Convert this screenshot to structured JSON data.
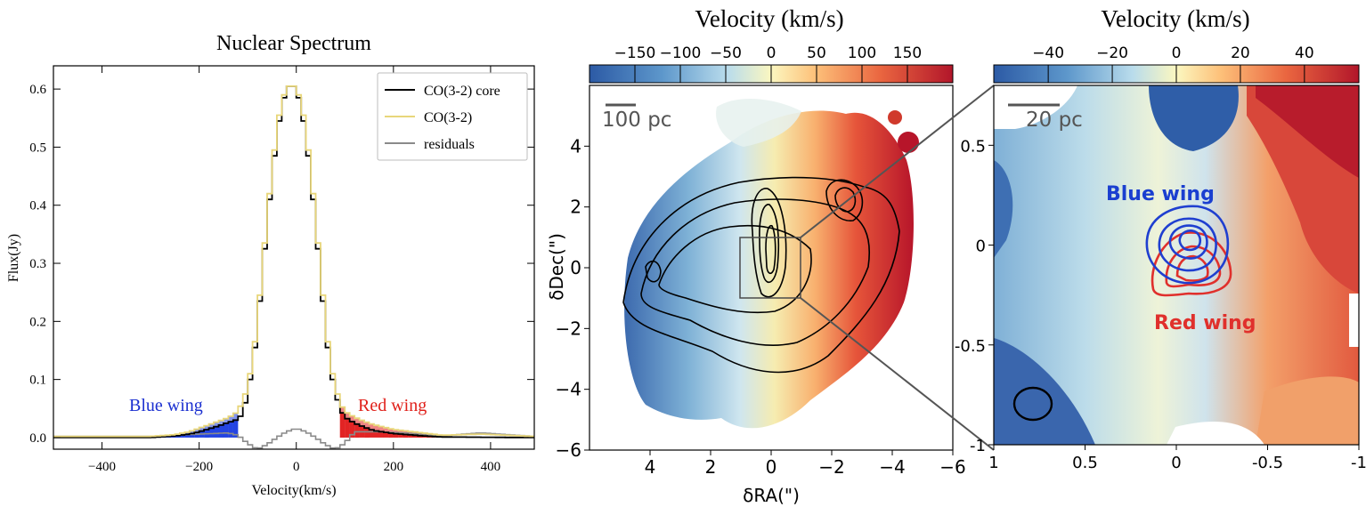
{
  "chart_data": [
    {
      "type": "line",
      "title": "Nuclear Spectrum",
      "xlabel": "Velocity(km/s)",
      "ylabel": "Flux(Jy)",
      "xlim": [
        -500,
        490
      ],
      "ylim": [
        -0.02,
        0.64
      ],
      "xticks": [
        -400,
        -200,
        0,
        200,
        400
      ],
      "yticks": [
        0.0,
        0.1,
        0.2,
        0.3,
        0.4,
        0.5,
        0.6
      ],
      "legend_position": "top-right",
      "legend": [
        "CO(3-2) core",
        "CO(3-2)",
        "residuals"
      ],
      "colors": {
        "core": "#000000",
        "total": "#e8d67a",
        "residuals": "#8a8a8a",
        "blue": "#1f3fe0",
        "red": "#e01f1f"
      },
      "annotations": [
        {
          "text": "Blue wing",
          "x": -205,
          "y": 0.052
        },
        {
          "text": "Red wing",
          "x": 170,
          "y": 0.052
        }
      ],
      "blue_wing_range": [
        -280,
        -120
      ],
      "red_wing_range": [
        90,
        300
      ],
      "series": [
        {
          "name": "CO(3-2) core",
          "x": [
            -500,
            -300,
            -250,
            -220,
            -200,
            -180,
            -160,
            -140,
            -125,
            -110,
            -100,
            -90,
            -80,
            -70,
            -60,
            -50,
            -40,
            -30,
            -20,
            -10,
            0,
            10,
            20,
            30,
            40,
            50,
            60,
            70,
            80,
            90,
            100,
            110,
            120,
            140,
            160,
            200,
            260,
            300,
            490
          ],
          "y": [
            0,
            0,
            0.003,
            0.006,
            0.01,
            0.015,
            0.02,
            0.026,
            0.03,
            0.04,
            0.08,
            0.12,
            0.19,
            0.28,
            0.37,
            0.45,
            0.52,
            0.57,
            0.6,
            0.61,
            0.6,
            0.57,
            0.52,
            0.45,
            0.37,
            0.28,
            0.19,
            0.12,
            0.08,
            0.05,
            0.035,
            0.03,
            0.025,
            0.018,
            0.012,
            0.007,
            0.003,
            0.001,
            0
          ]
        },
        {
          "name": "CO(3-2)",
          "x": [
            -500,
            -300,
            -250,
            -220,
            -200,
            -180,
            -160,
            -140,
            -125,
            -110,
            -100,
            -90,
            -80,
            -70,
            -60,
            -50,
            -40,
            -30,
            -20,
            -10,
            0,
            10,
            20,
            30,
            40,
            50,
            60,
            70,
            80,
            90,
            100,
            110,
            120,
            140,
            160,
            200,
            260,
            300,
            380,
            490
          ],
          "y": [
            0.002,
            0.002,
            0.005,
            0.01,
            0.016,
            0.022,
            0.028,
            0.034,
            0.042,
            0.06,
            0.09,
            0.13,
            0.2,
            0.29,
            0.38,
            0.46,
            0.53,
            0.58,
            0.6,
            0.61,
            0.6,
            0.58,
            0.53,
            0.46,
            0.38,
            0.29,
            0.2,
            0.13,
            0.09,
            0.06,
            0.045,
            0.04,
            0.035,
            0.028,
            0.022,
            0.014,
            0.008,
            0.004,
            0.006,
            0.002
          ]
        },
        {
          "name": "residuals",
          "x": [
            -500,
            -300,
            -200,
            -140,
            -120,
            -100,
            -80,
            -60,
            -40,
            -20,
            0,
            20,
            40,
            60,
            80,
            100,
            120,
            160,
            220,
            300,
            380,
            490
          ],
          "y": [
            0.002,
            0.002,
            0.006,
            0.008,
            0.004,
            -0.01,
            -0.02,
            -0.012,
            0,
            0.01,
            0.016,
            0.01,
            0,
            -0.012,
            -0.02,
            -0.01,
            0.01,
            0.01,
            0.008,
            0.003,
            0.008,
            0.002
          ]
        }
      ]
    },
    {
      "type": "heatmap",
      "colorbar_label": "Velocity (km/s)",
      "colorbar_ticks": [
        -150,
        -100,
        -50,
        0,
        50,
        100,
        150
      ],
      "colorbar_range": [
        -200,
        200
      ],
      "xlabel": "δRA(\")",
      "ylabel": "δDec(\")",
      "xlim": [
        6,
        -6
      ],
      "ylim": [
        -6,
        6
      ],
      "xticks": [
        4,
        2,
        0,
        -2,
        -4,
        -6
      ],
      "yticks": [
        4,
        2,
        0,
        -2,
        -4,
        -6
      ],
      "scalebar_label": "100 pc",
      "zoom_box": {
        "x": [
          1,
          -1
        ],
        "y": [
          -1,
          1
        ]
      }
    },
    {
      "type": "heatmap",
      "colorbar_label": "Velocity (km/s)",
      "colorbar_ticks": [
        -40,
        -20,
        0,
        20,
        40
      ],
      "colorbar_range": [
        -57,
        57
      ],
      "xlabel": "",
      "ylabel": "",
      "xlim": [
        1,
        -1
      ],
      "ylim": [
        -1,
        0.8
      ],
      "xticks": [
        1,
        0.5,
        0,
        -0.5,
        -1
      ],
      "yticks": [
        0.5,
        0,
        -0.5,
        -1
      ],
      "scalebar_label": "20 pc",
      "annotations": [
        {
          "text": "Blue wing",
          "color": "#1a3fd0"
        },
        {
          "text": "Red wing",
          "color": "#e0302c"
        }
      ]
    }
  ],
  "labels": {
    "x_tick_labels_1": [
      "−400",
      "−200",
      "0",
      "200",
      "400"
    ],
    "y_tick_labels_1": [
      "0.0",
      "0.1",
      "0.2",
      "0.3",
      "0.4",
      "0.5",
      "0.6"
    ],
    "cb2_tick_labels": [
      "−150",
      "−100",
      "−50",
      "0",
      "50",
      "100",
      "150"
    ],
    "x_tick_labels_2": [
      "4",
      "2",
      "0",
      "−2",
      "−4",
      "−6"
    ],
    "y_tick_labels_2": [
      "4",
      "2",
      "0",
      "−2",
      "−4",
      "−6"
    ],
    "cb3_tick_labels": [
      "−40",
      "−20",
      "0",
      "20",
      "40"
    ],
    "x_tick_labels_3": [
      "1",
      "0.5",
      "0",
      "-0.5",
      "-1"
    ],
    "y_tick_labels_3": [
      "0.5",
      "0",
      "-0.5",
      "-1"
    ]
  }
}
